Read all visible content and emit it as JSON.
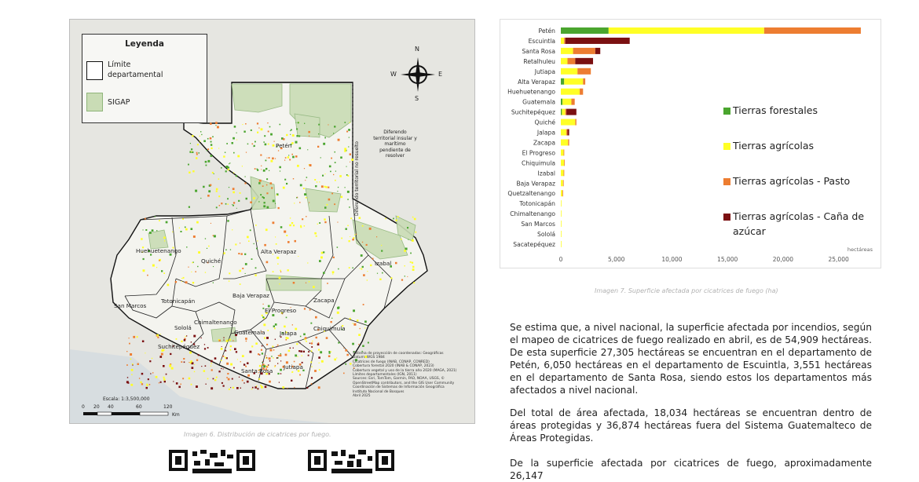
{
  "map": {
    "legend": {
      "title": "Leyenda",
      "items": [
        {
          "label": "Límite departamental",
          "color": "#ffffff",
          "border": "#111111"
        },
        {
          "label": "SIGAP",
          "color": "#c9dcb5",
          "border": "#8fb57a"
        }
      ]
    },
    "compass": {
      "n": "N",
      "s": "S",
      "e": "E",
      "w": "W"
    },
    "dispute_note": "Diferendo territorial insular y marítimo pendiente de resolver",
    "dispute_vertical": "Diferendo territorial no resuelto",
    "departments": [
      "Petén",
      "Huehuetenango",
      "Quiché",
      "Alta Verapaz",
      "Izabal",
      "San Marcos",
      "Totonicapán",
      "Baja Verapaz",
      "El Progreso",
      "Zacapa",
      "Sololá",
      "Chimaltenango",
      "Guatemala",
      "Jalapa",
      "Chiquimula",
      "Suchitepéquez",
      "Santa Rosa",
      "Jutiapa"
    ],
    "scale": {
      "label": "Escala: 1:3,500,000",
      "ticks": [
        "0",
        "20",
        "40",
        "60",
        "",
        "120"
      ],
      "unit": "Km"
    },
    "metadata": "Sistema de proyección de coordenadas: Geográficas\nDatum: WGS 1984\nCicatrices de fuego (INAB, CONAP, CONRED)\nCobertura forestal 2020 (INAB & CONAP, 2023)\nCobertura vegetal y uso de la tierra año 2020 (MAGA, 2021)\nLímites departamentales (IGN, 2011)\nSources: Esri, TomTom, Garmin, FAO, NOAA, USGS, © OpenStreetMap contributors, and the GIS User Community\nCoordinación de Sistemas de Información Geográfica\nInstituto Nacional de Bosques\nAbril 2025",
    "caption": "Imagen 6. Distribución de cicatrices por fuego."
  },
  "chart_data": {
    "type": "bar",
    "orientation": "horizontal",
    "stacked": true,
    "categories": [
      "Petén",
      "Escuintla",
      "Santa Rosa",
      "Retalhuleu",
      "Jutiapa",
      "Alta Verapaz",
      "Huehuetenango",
      "Guatemala",
      "Suchitepéquez",
      "Quiché",
      "Jalapa",
      "Zacapa",
      "El Progreso",
      "Chiquimula",
      "Izabal",
      "Baja Verapaz",
      "Quetzaltenango",
      "Totonicapán",
      "Chimaltenango",
      "San Marcos",
      "Sololá",
      "Sacatepéquez"
    ],
    "series": [
      {
        "name": "Tierras forestales",
        "color": "#4aa52e",
        "values": [
          4300,
          0,
          0,
          0,
          0,
          300,
          0,
          150,
          100,
          0,
          0,
          0,
          0,
          0,
          0,
          0,
          0,
          0,
          0,
          0,
          0,
          0
        ]
      },
      {
        "name": "Tierras agrícolas",
        "color": "#ffff26",
        "values": [
          14000,
          300,
          1100,
          600,
          1500,
          1700,
          1700,
          800,
          300,
          1300,
          500,
          650,
          250,
          300,
          250,
          200,
          150,
          30,
          30,
          20,
          15,
          10
        ]
      },
      {
        "name": "Tierras agrícolas - Pasto",
        "color": "#ed7d31",
        "values": [
          8700,
          100,
          2000,
          700,
          1200,
          200,
          300,
          300,
          100,
          100,
          100,
          100,
          50,
          50,
          30,
          20,
          50,
          0,
          0,
          0,
          0,
          0
        ]
      },
      {
        "name": "Tierras agrícolas - Caña de azúcar",
        "color": "#7b1011",
        "values": [
          0,
          5800,
          450,
          1600,
          0,
          0,
          0,
          0,
          900,
          0,
          150,
          0,
          0,
          0,
          0,
          0,
          0,
          0,
          0,
          0,
          0,
          0
        ]
      }
    ],
    "xlim": [
      0,
      27500
    ],
    "xticks": [
      "0",
      "5,000",
      "10,000",
      "15,000",
      "20,000",
      "25,000"
    ],
    "xlabel": "hectáreas",
    "legend_position": "right",
    "caption": "Imagen 7. Superficie afectada por cicatrices de fuego (ha)"
  },
  "text": {
    "p1": "Se estima que, a nivel nacional, la superficie afectada por incendios, según el mapeo de cicatrices de fuego realizado en abril, es de 54,909 hectáreas. De esta superficie 27,305 hectáreas se encuentran en el departamento de Petén, 6,050 hectáreas en el departamento de Escuintla, 3,551 hectáreas en el departamento de Santa Rosa, siendo estos los departamentos más afectados a nivel nacional.",
    "p2": "Del total de área afectada, 18,034 hectáreas se encuentran dentro de áreas protegidas y 36,874 hectáreas fuera del Sistema Guatemalteco de Áreas Protegidas.",
    "p3": "De la superficie afectada por cicatrices de fuego, aproximadamente 26,147"
  }
}
